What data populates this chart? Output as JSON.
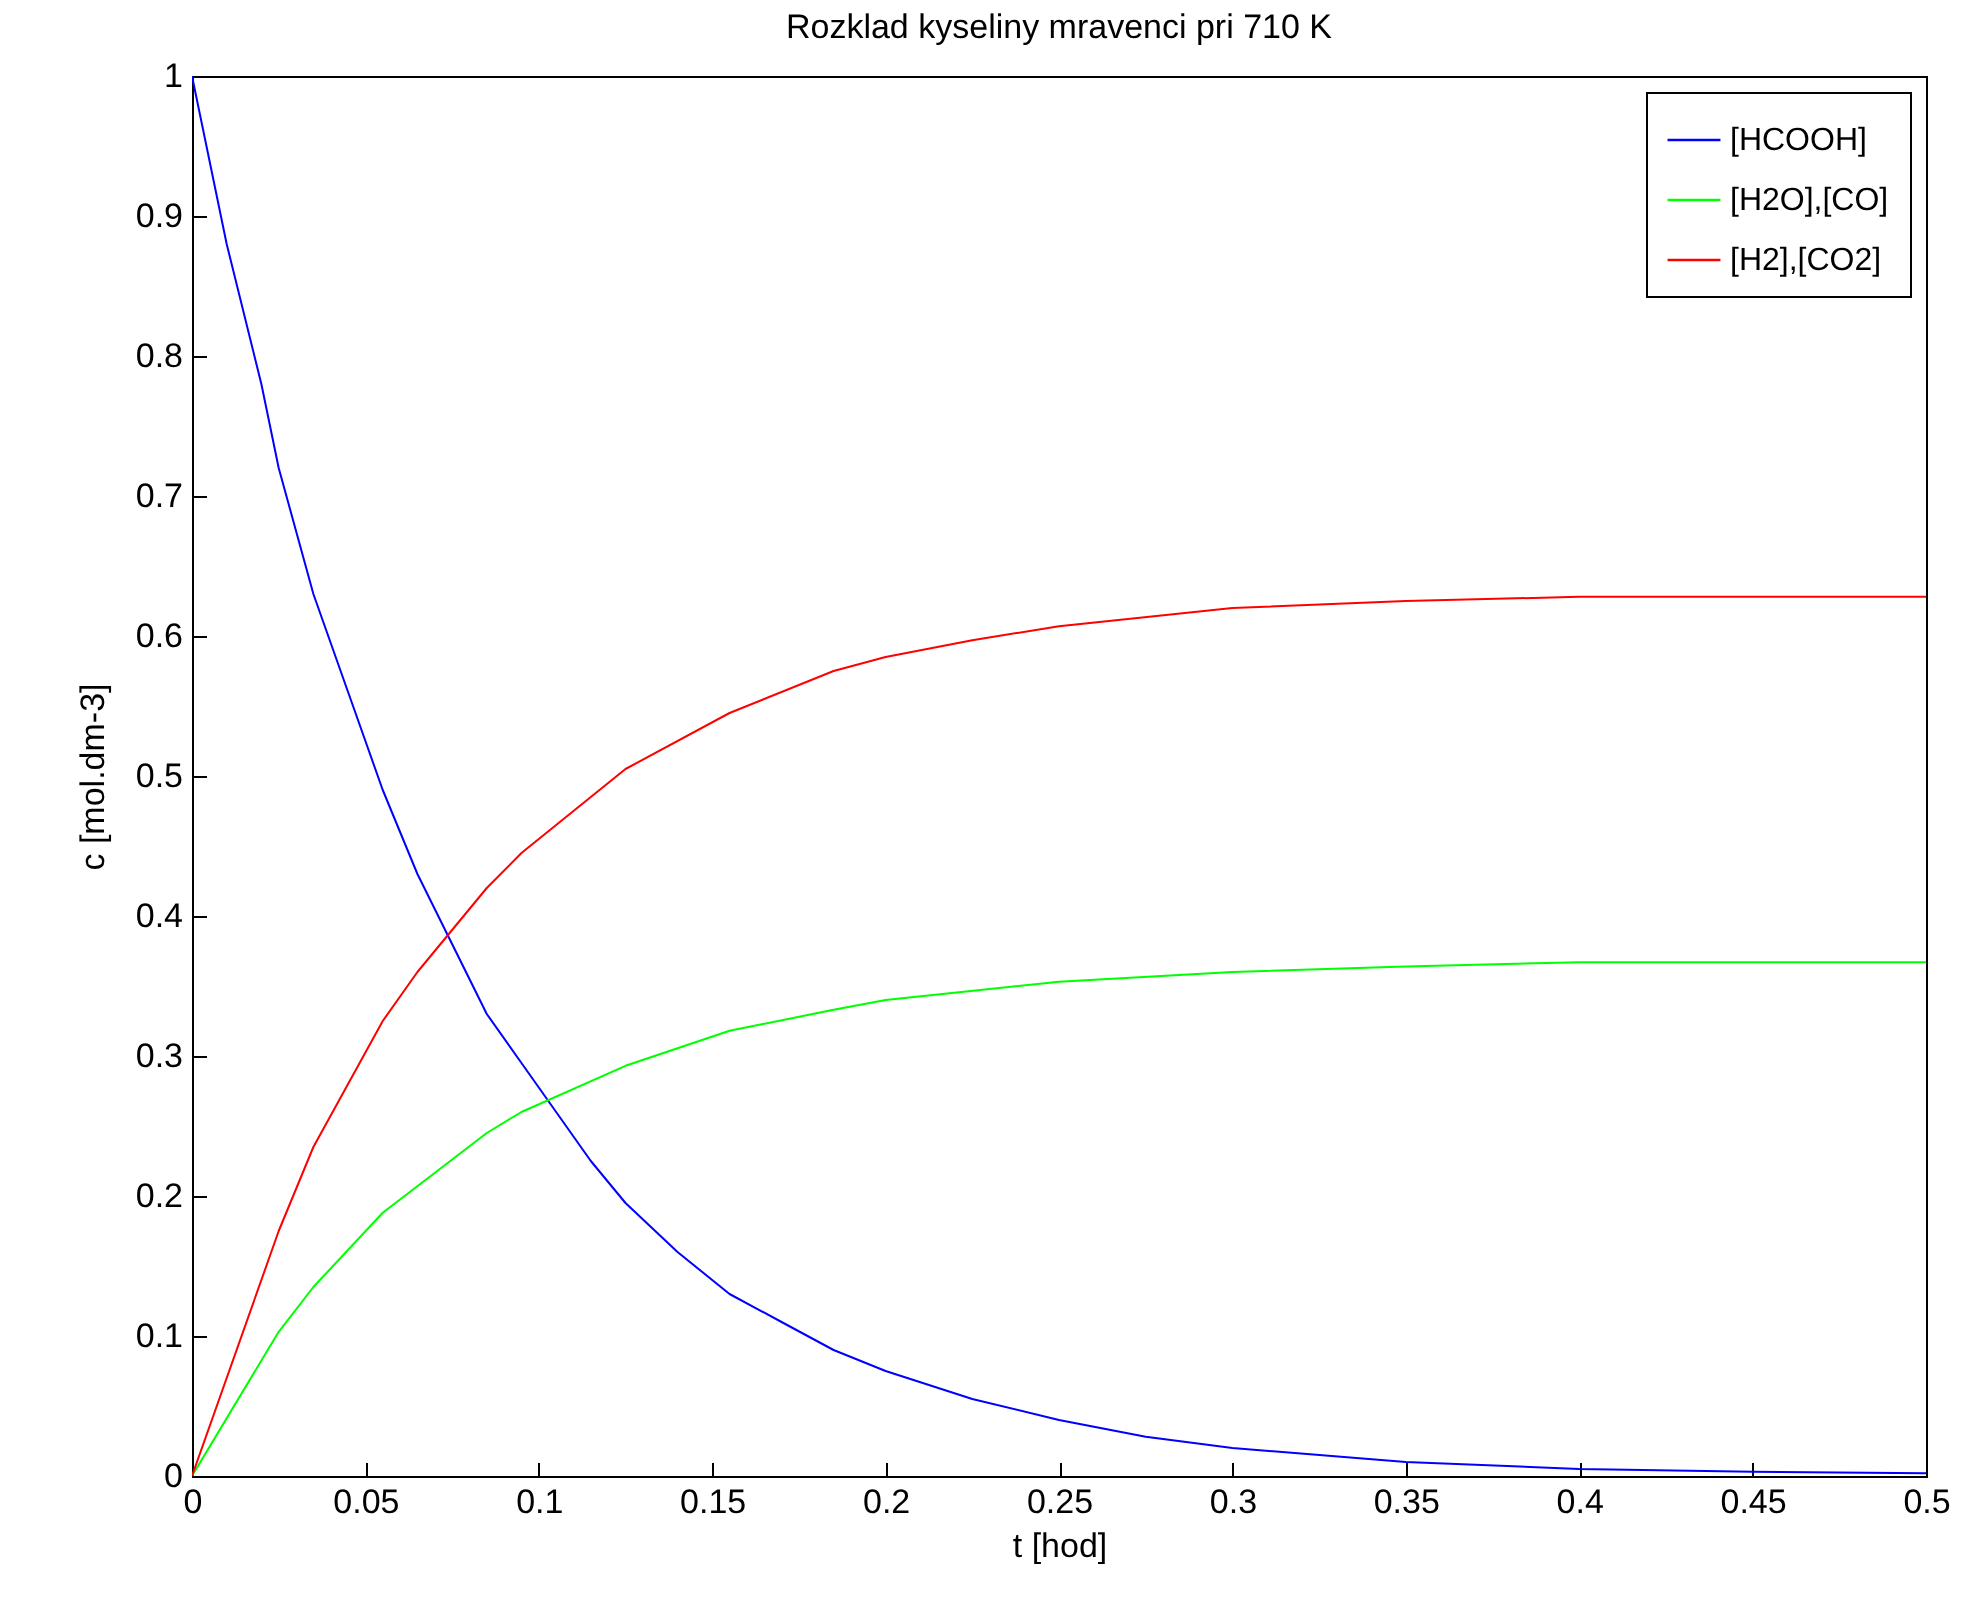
{
  "chart_data": {
    "type": "line",
    "title": "Rozklad kyseliny mravenci pri 710 K",
    "xlabel": "t [hod]",
    "ylabel": "c [mol.dm-3]",
    "xlim": [
      0,
      0.5
    ],
    "xticks": [
      0,
      0.05,
      0.1,
      0.15,
      0.2,
      0.25,
      0.3,
      0.35,
      0.4,
      0.45,
      0.5
    ],
    "ylim": [
      0,
      1
    ],
    "yticks": [
      0,
      0.1,
      0.2,
      0.3,
      0.4,
      0.5,
      0.6,
      0.7,
      0.8,
      0.9,
      1
    ],
    "grid": false,
    "legend": "top right",
    "marker": "none",
    "line_style": "solid",
    "series": [
      {
        "name": "[HCOOH]",
        "color": "#0000ff",
        "x": [
          0,
          0.01,
          0.02,
          0.025,
          0.035,
          0.045,
          0.055,
          0.065,
          0.075,
          0.085,
          0.095,
          0.105,
          0.115,
          0.125,
          0.14,
          0.155,
          0.17,
          0.185,
          0.2,
          0.225,
          0.25,
          0.275,
          0.3,
          0.35,
          0.4,
          0.45,
          0.5
        ],
        "values": [
          1.0,
          0.88,
          0.78,
          0.72,
          0.63,
          0.56,
          0.49,
          0.43,
          0.38,
          0.33,
          0.295,
          0.26,
          0.225,
          0.195,
          0.16,
          0.13,
          0.11,
          0.09,
          0.075,
          0.055,
          0.04,
          0.028,
          0.02,
          0.01,
          0.005,
          0.003,
          0.002
        ]
      },
      {
        "name": "[H2O],[CO]",
        "color": "#00ff00",
        "x": [
          0,
          0.025,
          0.035,
          0.055,
          0.085,
          0.095,
          0.125,
          0.155,
          0.185,
          0.2,
          0.25,
          0.3,
          0.35,
          0.4,
          0.5
        ],
        "values": [
          0,
          0.103,
          0.135,
          0.188,
          0.245,
          0.26,
          0.293,
          0.318,
          0.333,
          0.34,
          0.353,
          0.36,
          0.364,
          0.367,
          0.367
        ]
      },
      {
        "name": "[H2],[CO2]",
        "color": "#ff0000",
        "x": [
          0,
          0.025,
          0.035,
          0.055,
          0.065,
          0.085,
          0.095,
          0.125,
          0.155,
          0.185,
          0.2,
          0.225,
          0.25,
          0.3,
          0.35,
          0.4,
          0.5
        ],
        "values": [
          0,
          0.175,
          0.235,
          0.325,
          0.36,
          0.42,
          0.445,
          0.505,
          0.545,
          0.575,
          0.585,
          0.597,
          0.607,
          0.62,
          0.625,
          0.628,
          0.628
        ]
      }
    ]
  }
}
